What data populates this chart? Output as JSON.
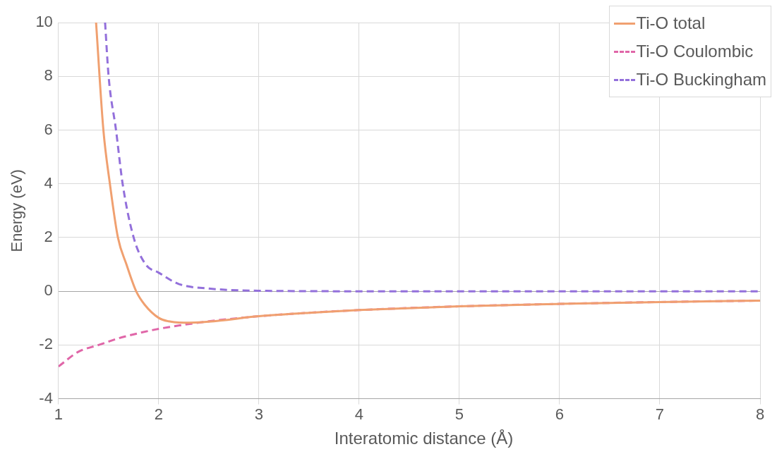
{
  "chart_data": {
    "type": "line",
    "xlabel": "Interatomic distance (Å)",
    "ylabel": "Energy (eV)",
    "xlim": [
      1,
      8
    ],
    "xticks": [
      1,
      2,
      3,
      4,
      5,
      6,
      7,
      8
    ],
    "ylim": [
      -4,
      10
    ],
    "yticks": [
      -4,
      -2,
      0,
      2,
      4,
      6,
      8,
      10
    ],
    "grid": true,
    "legend": "top right",
    "marker": "none",
    "series": [
      {
        "name": "Ti-O total",
        "color": "#f0a070",
        "line_style": "solid",
        "x": [
          1.375,
          1.448,
          1.513,
          1.593,
          1.678,
          1.775,
          1.86,
          2,
          2.1,
          2.25,
          2.5,
          3,
          3.5,
          4,
          5,
          6,
          7,
          8
        ],
        "values": [
          10,
          6,
          4,
          2,
          1,
          0,
          -0.5,
          -0.99,
          -1.12,
          -1.17,
          -1.13,
          -0.93,
          -0.8,
          -0.7,
          -0.56,
          -0.47,
          -0.4,
          -0.35
        ]
      },
      {
        "name": "Ti-O Coulombic",
        "color": "#e066a8",
        "line_style": "dashed",
        "x": [
          1,
          1.2,
          1.4,
          1.6,
          1.8,
          2,
          2.5,
          3,
          3.5,
          4,
          5,
          6,
          7,
          8
        ],
        "values": [
          -2.8,
          -2.25,
          -2,
          -1.75,
          -1.56,
          -1.4,
          -1.12,
          -0.93,
          -0.8,
          -0.7,
          -0.56,
          -0.47,
          -0.4,
          -0.35
        ]
      },
      {
        "name": "Ti-O Buckingham",
        "color": "#9370db",
        "line_style": "dashed",
        "x": [
          1.465,
          1.5,
          1.574,
          1.64,
          1.75,
          1.87,
          2,
          2.2,
          2.5,
          3,
          4,
          5,
          6,
          7,
          8
        ],
        "values": [
          10,
          8,
          6,
          4,
          2,
          1,
          0.69,
          0.27,
          0.1,
          0.02,
          0,
          0,
          0,
          0,
          0
        ]
      }
    ]
  }
}
